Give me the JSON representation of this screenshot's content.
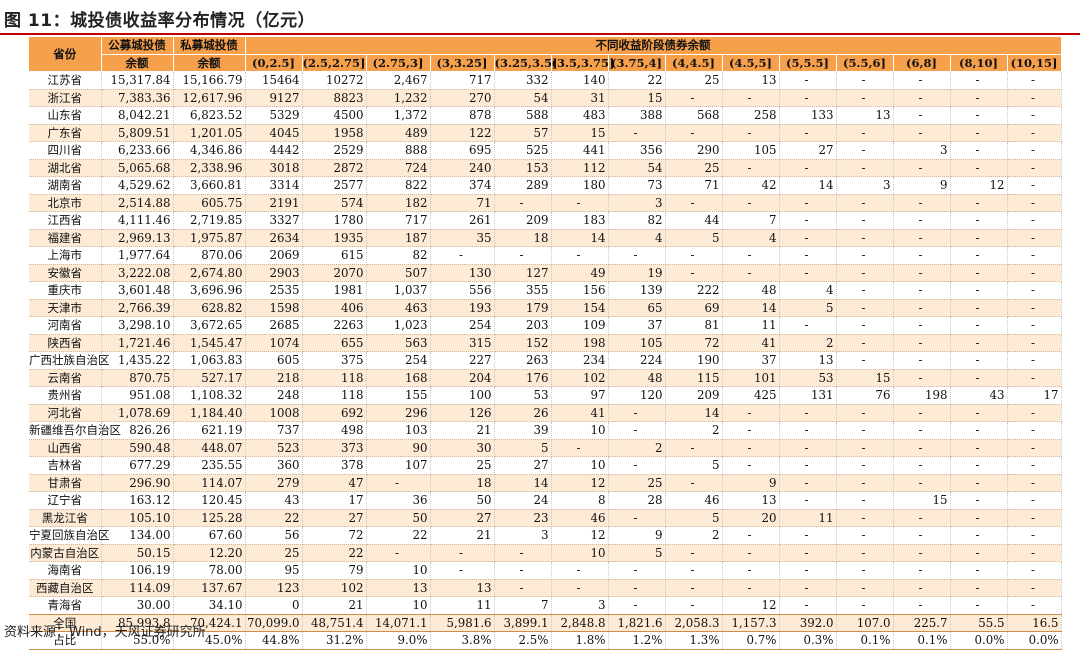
{
  "title": "图 11：城投债收益率分布情况（亿元）",
  "header": {
    "province": "省份",
    "public_line1": "公募城投债",
    "public_line2": "余额",
    "private_line1": "私募城投债",
    "private_line2": "余额",
    "group": "不同收益阶段债券余额",
    "ranges": [
      "(0,2.5]",
      "(2.5,2.75]",
      "(2.75,3]",
      "(3,3.25]",
      "(3.25,3.5]",
      "(3.5,3.75]",
      "(3.75,4]",
      "(4,4.5]",
      "(4.5,5]",
      "(5,5.5]",
      "(5.5,6]",
      "(6,8]",
      "(8,10]",
      "(10,15]"
    ]
  },
  "rows": [
    [
      "江苏省",
      "15,317.84",
      "15,166.79",
      "15464",
      "10272",
      "2,467",
      "717",
      "332",
      "140",
      "22",
      "25",
      "13",
      "-",
      "-",
      "-",
      "-",
      "-"
    ],
    [
      "浙江省",
      "7,383.36",
      "12,617.96",
      "9127",
      "8823",
      "1,232",
      "270",
      "54",
      "31",
      "15",
      "-",
      "-",
      "-",
      "-",
      "-",
      "-",
      "-"
    ],
    [
      "山东省",
      "8,042.21",
      "6,823.52",
      "5329",
      "4500",
      "1,372",
      "878",
      "588",
      "483",
      "388",
      "568",
      "258",
      "133",
      "13",
      "-",
      "-",
      "-"
    ],
    [
      "广东省",
      "5,809.51",
      "1,201.05",
      "4045",
      "1958",
      "489",
      "122",
      "57",
      "15",
      "-",
      "-",
      "-",
      "-",
      "-",
      "-",
      "-",
      "-"
    ],
    [
      "四川省",
      "6,233.66",
      "4,346.86",
      "4442",
      "2529",
      "888",
      "695",
      "525",
      "441",
      "356",
      "290",
      "105",
      "27",
      "-",
      "3",
      "-",
      "-"
    ],
    [
      "湖北省",
      "5,065.68",
      "2,338.96",
      "3018",
      "2872",
      "724",
      "240",
      "153",
      "112",
      "54",
      "25",
      "-",
      "-",
      "-",
      "-",
      "-",
      "-"
    ],
    [
      "湖南省",
      "4,529.62",
      "3,660.81",
      "3314",
      "2577",
      "822",
      "374",
      "289",
      "180",
      "73",
      "71",
      "42",
      "14",
      "3",
      "9",
      "12",
      "-"
    ],
    [
      "北京市",
      "2,514.88",
      "605.75",
      "2191",
      "574",
      "182",
      "71",
      "-",
      "-",
      "3",
      "-",
      "-",
      "-",
      "-",
      "-",
      "-",
      "-"
    ],
    [
      "江西省",
      "4,111.46",
      "2,719.85",
      "3327",
      "1780",
      "717",
      "261",
      "209",
      "183",
      "82",
      "44",
      "7",
      "-",
      "-",
      "-",
      "-",
      "-"
    ],
    [
      "福建省",
      "2,969.13",
      "1,975.87",
      "2634",
      "1935",
      "187",
      "35",
      "18",
      "14",
      "4",
      "5",
      "4",
      "-",
      "-",
      "-",
      "-",
      "-"
    ],
    [
      "上海市",
      "1,977.64",
      "870.06",
      "2069",
      "615",
      "82",
      "-",
      "-",
      "-",
      "-",
      "-",
      "-",
      "-",
      "-",
      "-",
      "-",
      "-"
    ],
    [
      "安徽省",
      "3,222.08",
      "2,674.80",
      "2903",
      "2070",
      "507",
      "130",
      "127",
      "49",
      "19",
      "-",
      "-",
      "-",
      "-",
      "-",
      "-",
      "-"
    ],
    [
      "重庆市",
      "3,601.48",
      "3,696.96",
      "2535",
      "1981",
      "1,037",
      "556",
      "355",
      "156",
      "139",
      "222",
      "48",
      "4",
      "-",
      "-",
      "-",
      "-"
    ],
    [
      "天津市",
      "2,766.39",
      "628.82",
      "1598",
      "406",
      "463",
      "193",
      "179",
      "154",
      "65",
      "69",
      "14",
      "5",
      "-",
      "-",
      "-",
      "-"
    ],
    [
      "河南省",
      "3,298.10",
      "3,672.65",
      "2685",
      "2263",
      "1,023",
      "254",
      "203",
      "109",
      "37",
      "81",
      "11",
      "-",
      "-",
      "-",
      "-",
      "-"
    ],
    [
      "陕西省",
      "1,721.46",
      "1,545.47",
      "1074",
      "655",
      "563",
      "315",
      "152",
      "198",
      "105",
      "72",
      "41",
      "2",
      "-",
      "-",
      "-",
      "-"
    ],
    [
      "广西壮族自治区",
      "1,435.22",
      "1,063.83",
      "605",
      "375",
      "254",
      "227",
      "263",
      "234",
      "224",
      "190",
      "37",
      "13",
      "-",
      "-",
      "-",
      "-"
    ],
    [
      "云南省",
      "870.75",
      "527.17",
      "218",
      "118",
      "168",
      "204",
      "176",
      "102",
      "48",
      "115",
      "101",
      "53",
      "15",
      "-",
      "-",
      "-"
    ],
    [
      "贵州省",
      "951.08",
      "1,108.32",
      "248",
      "118",
      "155",
      "100",
      "53",
      "97",
      "120",
      "209",
      "425",
      "131",
      "76",
      "198",
      "43",
      "17"
    ],
    [
      "河北省",
      "1,078.69",
      "1,184.40",
      "1008",
      "692",
      "296",
      "126",
      "26",
      "41",
      "-",
      "14",
      "-",
      "-",
      "-",
      "-",
      "-",
      "-"
    ],
    [
      "新疆维吾尔自治区",
      "826.26",
      "621.19",
      "737",
      "498",
      "103",
      "21",
      "39",
      "10",
      "-",
      "2",
      "-",
      "-",
      "-",
      "-",
      "-",
      "-"
    ],
    [
      "山西省",
      "590.48",
      "448.07",
      "523",
      "373",
      "90",
      "30",
      "5",
      "-",
      "2",
      "-",
      "-",
      "-",
      "-",
      "-",
      "-",
      "-"
    ],
    [
      "吉林省",
      "677.29",
      "235.55",
      "360",
      "378",
      "107",
      "25",
      "27",
      "10",
      "-",
      "5",
      "-",
      "-",
      "-",
      "-",
      "-",
      "-"
    ],
    [
      "甘肃省",
      "296.90",
      "114.07",
      "279",
      "47",
      "-",
      "18",
      "14",
      "12",
      "25",
      "-",
      "9",
      "-",
      "-",
      "-",
      "-",
      "-"
    ],
    [
      "辽宁省",
      "163.12",
      "120.45",
      "43",
      "17",
      "36",
      "50",
      "24",
      "8",
      "28",
      "46",
      "13",
      "-",
      "-",
      "15",
      "-",
      "-"
    ],
    [
      "黑龙江省",
      "105.10",
      "125.28",
      "22",
      "27",
      "50",
      "27",
      "23",
      "46",
      "-",
      "5",
      "20",
      "11",
      "-",
      "-",
      "-",
      "-"
    ],
    [
      "宁夏回族自治区",
      "134.00",
      "67.60",
      "56",
      "72",
      "22",
      "21",
      "3",
      "12",
      "9",
      "2",
      "-",
      "-",
      "-",
      "-",
      "-",
      "-"
    ],
    [
      "内蒙古自治区",
      "50.15",
      "12.20",
      "25",
      "22",
      "-",
      "-",
      "-",
      "10",
      "5",
      "-",
      "-",
      "-",
      "-",
      "-",
      "-",
      "-"
    ],
    [
      "海南省",
      "106.19",
      "78.00",
      "95",
      "79",
      "10",
      "-",
      "-",
      "-",
      "-",
      "-",
      "-",
      "-",
      "-",
      "-",
      "-",
      "-"
    ],
    [
      "西藏自治区",
      "114.09",
      "137.67",
      "123",
      "102",
      "13",
      "13",
      "-",
      "-",
      "-",
      "-",
      "-",
      "-",
      "-",
      "-",
      "-",
      "-"
    ],
    [
      "青海省",
      "30.00",
      "34.10",
      "0",
      "21",
      "10",
      "11",
      "7",
      "3",
      "-",
      "-",
      "12",
      "-",
      "-",
      "-",
      "-",
      "-"
    ]
  ],
  "total": [
    "全国",
    "85,993.8",
    "70,424.1",
    "70,099.0",
    "48,751.4",
    "14,071.1",
    "5,981.6",
    "3,899.1",
    "2,848.8",
    "1,821.6",
    "2,058.3",
    "1,157.3",
    "392.0",
    "107.0",
    "225.7",
    "55.5",
    "16.5"
  ],
  "share": [
    "占比",
    "55.0%",
    "45.0%",
    "44.8%",
    "31.2%",
    "9.0%",
    "3.8%",
    "2.5%",
    "1.8%",
    "1.2%",
    "1.3%",
    "0.7%",
    "0.3%",
    "0.1%",
    "0.1%",
    "0.0%",
    "0.0%"
  ],
  "source": "资料来源：Wind，天风证券研究所",
  "colors": {
    "header_bg": "#f7a04b",
    "stripe_bg": "#fdebd6",
    "title_rule": "#c00000"
  }
}
